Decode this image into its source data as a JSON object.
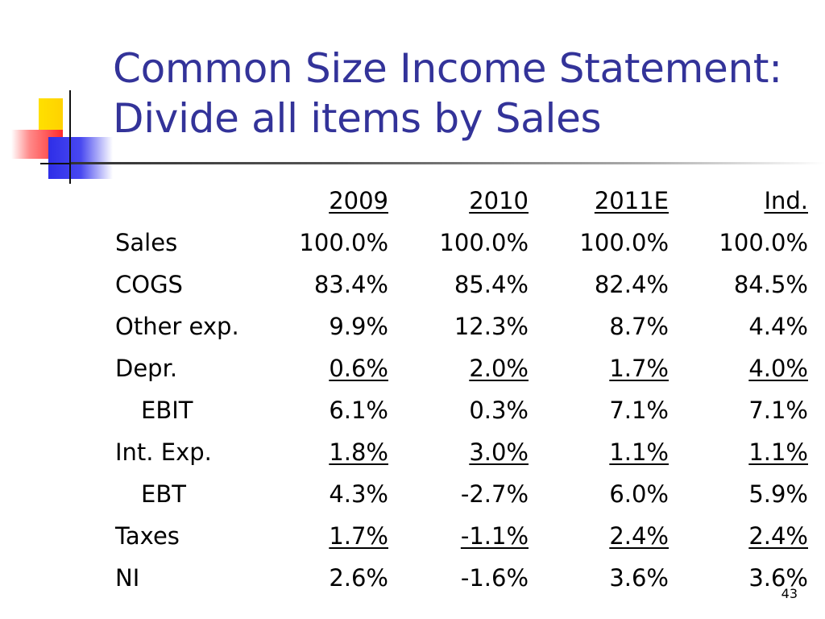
{
  "slide": {
    "title_line1": "Common Size Income Statement:",
    "title_line2": "Divide all items by Sales",
    "page_number": "43"
  },
  "colors": {
    "title": "#333399",
    "deco_yellow": "#ffd200",
    "deco_red": "#ff2a2a",
    "deco_blue": "#2e2ee8"
  },
  "table": {
    "headers": [
      "2009",
      "2010",
      "2011E",
      "Ind."
    ],
    "rows": [
      {
        "label": "Sales",
        "values": [
          "100.0%",
          "100.0%",
          "100.0%",
          "100.0%"
        ]
      },
      {
        "label": "COGS",
        "values": [
          "83.4%",
          "85.4%",
          "82.4%",
          "84.5%"
        ]
      },
      {
        "label": "Other exp.",
        "values": [
          "9.9%",
          "12.3%",
          "8.7%",
          "4.4%"
        ]
      },
      {
        "label": "Depr.",
        "values": [
          "0.6%",
          "2.0%",
          "1.7%",
          "4.0%"
        ]
      },
      {
        "label": "EBIT",
        "values": [
          "6.1%",
          "0.3%",
          "7.1%",
          "7.1%"
        ]
      },
      {
        "label": "Int. Exp.",
        "values": [
          "1.8%",
          "3.0%",
          "1.1%",
          "1.1%"
        ]
      },
      {
        "label": "EBT",
        "values": [
          "4.3%",
          "-2.7%",
          "6.0%",
          "5.9%"
        ]
      },
      {
        "label": "Taxes",
        "values": [
          "1.7%",
          "-1.1%",
          "2.4%",
          "2.4%"
        ]
      },
      {
        "label": "NI",
        "values": [
          "2.6%",
          "-1.6%",
          "3.6%",
          "3.6%"
        ]
      }
    ]
  }
}
